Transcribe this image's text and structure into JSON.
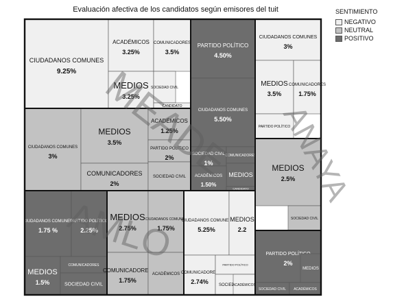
{
  "title": "Evaluación afectiva de los candidatos según emisores del tuit",
  "legend": {
    "title": "SENTIMIENTO",
    "items": [
      {
        "label": "NEGATIVO",
        "color": "#f0f0f0"
      },
      {
        "label": "NEUTRAL",
        "color": "#c2c2c2"
      },
      {
        "label": "POSITIVO",
        "color": "#6d6d6d"
      }
    ]
  },
  "watermarks": [
    "MEADE",
    "ANAYA",
    "AMLO"
  ],
  "chart_data": {
    "type": "treemap",
    "title": "Evaluación afectiva de los candidatos según emisores del tuit",
    "groups": [
      {
        "candidate": "MEADE",
        "sentiment": "NEGATIVO",
        "cells": [
          {
            "label": "CIUDADANOS COMUNES",
            "value": "9.25%"
          },
          {
            "label": "ACADÉMICOS",
            "value": "3.25%"
          },
          {
            "label": "COMUNICADORES",
            "value": "3.5%"
          },
          {
            "label": "MEDIOS",
            "value": "3.25%"
          },
          {
            "label": "SOCIEDAD CIVIL",
            "value": ""
          },
          {
            "label": "CANDIDATO",
            "value": ""
          }
        ]
      },
      {
        "candidate": "MEADE",
        "sentiment": "NEUTRAL",
        "cells": [
          {
            "label": "CIUDADANOS COMUNES",
            "value": "3%"
          },
          {
            "label": "MEDIOS",
            "value": "3.5%"
          },
          {
            "label": "COMUNICADORES",
            "value": "2%"
          },
          {
            "label": "ACADÉMICOS",
            "value": "1.25%"
          },
          {
            "label": "PARTIDO POLÍTICO",
            "value": "2%"
          },
          {
            "label": "SOCIEDAD CIVIL",
            "value": ""
          }
        ]
      },
      {
        "candidate": "MEADE",
        "sentiment": "POSITIVO",
        "cells": [
          {
            "label": "PARTIDO POLÍTICO",
            "value": "4.50%"
          },
          {
            "label": "CIUDADANOS COMUNES",
            "value": "5.50%"
          },
          {
            "label": "SOCIEDAD CIVIL",
            "value": "1%"
          },
          {
            "label": "COMUNICADORES",
            "value": ""
          },
          {
            "label": "MEDIOS",
            "value": ""
          },
          {
            "label": "ACADÉMICOS",
            "value": "1.50%"
          },
          {
            "label": "CANDIDATO",
            "value": ""
          }
        ]
      },
      {
        "candidate": "ANAYA",
        "sentiment": "NEGATIVO",
        "cells": [
          {
            "label": "CIUDADANOS COMUNES",
            "value": "3%"
          },
          {
            "label": "MEDIOS",
            "value": "3.5%"
          },
          {
            "label": "COMUNICADORES",
            "value": "1.75%"
          },
          {
            "label": "PARTIDO POLÍTICO",
            "value": ""
          }
        ]
      },
      {
        "candidate": "ANAYA",
        "sentiment": "NEUTRAL",
        "cells": [
          {
            "label": "MEDIOS",
            "value": "2.5%"
          },
          {
            "label": "SOCIEDAD CIVIL",
            "value": ""
          }
        ]
      },
      {
        "candidate": "ANAYA",
        "sentiment": "POSITIVO",
        "cells": [
          {
            "label": "PARTIDO POLÍTICO",
            "value": "2%"
          },
          {
            "label": "MEDIOS",
            "value": ""
          },
          {
            "label": "SOCIEDAD CIVIL",
            "value": ""
          },
          {
            "label": "ACADÉMICOS",
            "value": ""
          }
        ]
      },
      {
        "candidate": "AMLO",
        "sentiment": "POSITIVO",
        "cells": [
          {
            "label": "CIUDADANOS COMUNES",
            "value": "1.75 %"
          },
          {
            "label": "PARTIDO POLÍTICO",
            "value": "2.25%"
          },
          {
            "label": "MEDIOS",
            "value": "1.5%"
          },
          {
            "label": "COMUNICADORES",
            "value": ""
          },
          {
            "label": "SOCIEDAD CIVIL",
            "value": ""
          }
        ]
      },
      {
        "candidate": "AMLO",
        "sentiment": "NEUTRAL",
        "cells": [
          {
            "label": "MEDIOS",
            "value": "2.75%"
          },
          {
            "label": "CIUDADANOS COMUNES",
            "value": "1.75%"
          },
          {
            "label": "COMUNICADORES",
            "value": "1.75%"
          },
          {
            "label": "ACADÉMICOS",
            "value": ""
          }
        ]
      },
      {
        "candidate": "AMLO",
        "sentiment": "NEGATIVO",
        "cells": [
          {
            "label": "CIUDADANOS COMUNES",
            "value": "5.25%"
          },
          {
            "label": "MEDIOS",
            "value": "2.2"
          },
          {
            "label": "COMUNICADORES",
            "value": "2.74%"
          },
          {
            "label": "PARTIDO POLÍTICO",
            "value": ""
          },
          {
            "label": "SOCIEDAD CIVIL",
            "value": ""
          },
          {
            "label": "ACADÉMICOS",
            "value": ""
          }
        ]
      }
    ]
  }
}
